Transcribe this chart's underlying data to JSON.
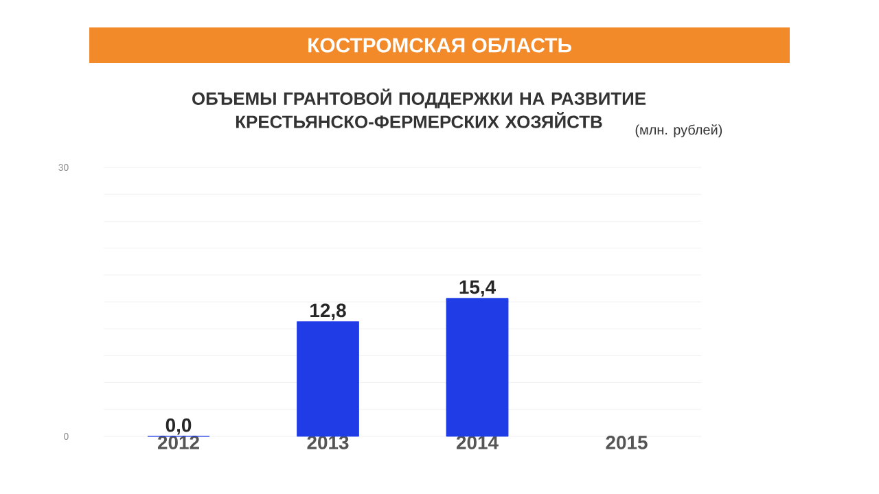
{
  "chart_data": {
    "type": "bar",
    "title": "КОСТРОМСКАЯ ОБЛАСТЬ",
    "subtitle": "ОБЪЕМЫ ГРАНТОВОЙ ПОДДЕРЖКИ НА РАЗВИТИЕ КРЕСТЬЯНСКО-ФЕРМЕРСКИХ ХОЗЯЙСТВ",
    "annotations": [
      "(млн. рублей)"
    ],
    "categories": [
      "2012",
      "2013",
      "2014",
      "2015"
    ],
    "values": [
      0.0,
      12.8,
      15.4,
      null
    ],
    "value_labels": [
      "0,0",
      "12,8",
      "15,4",
      null
    ],
    "color": "#1f3ce6",
    "ylim": [
      0,
      30
    ],
    "yticks": [
      0,
      {
        "value": 3,
        "label": null
      },
      {
        "value": 6,
        "label": null
      },
      {
        "value": 9,
        "label": null
      },
      {
        "value": 12,
        "label": null
      },
      {
        "value": 15,
        "label": null
      },
      {
        "value": 18,
        "label": null
      },
      {
        "value": 21,
        "label": null
      },
      {
        "value": 24,
        "label": null
      },
      {
        "value": 27,
        "label": null
      },
      30
    ],
    "grid": "y"
  }
}
